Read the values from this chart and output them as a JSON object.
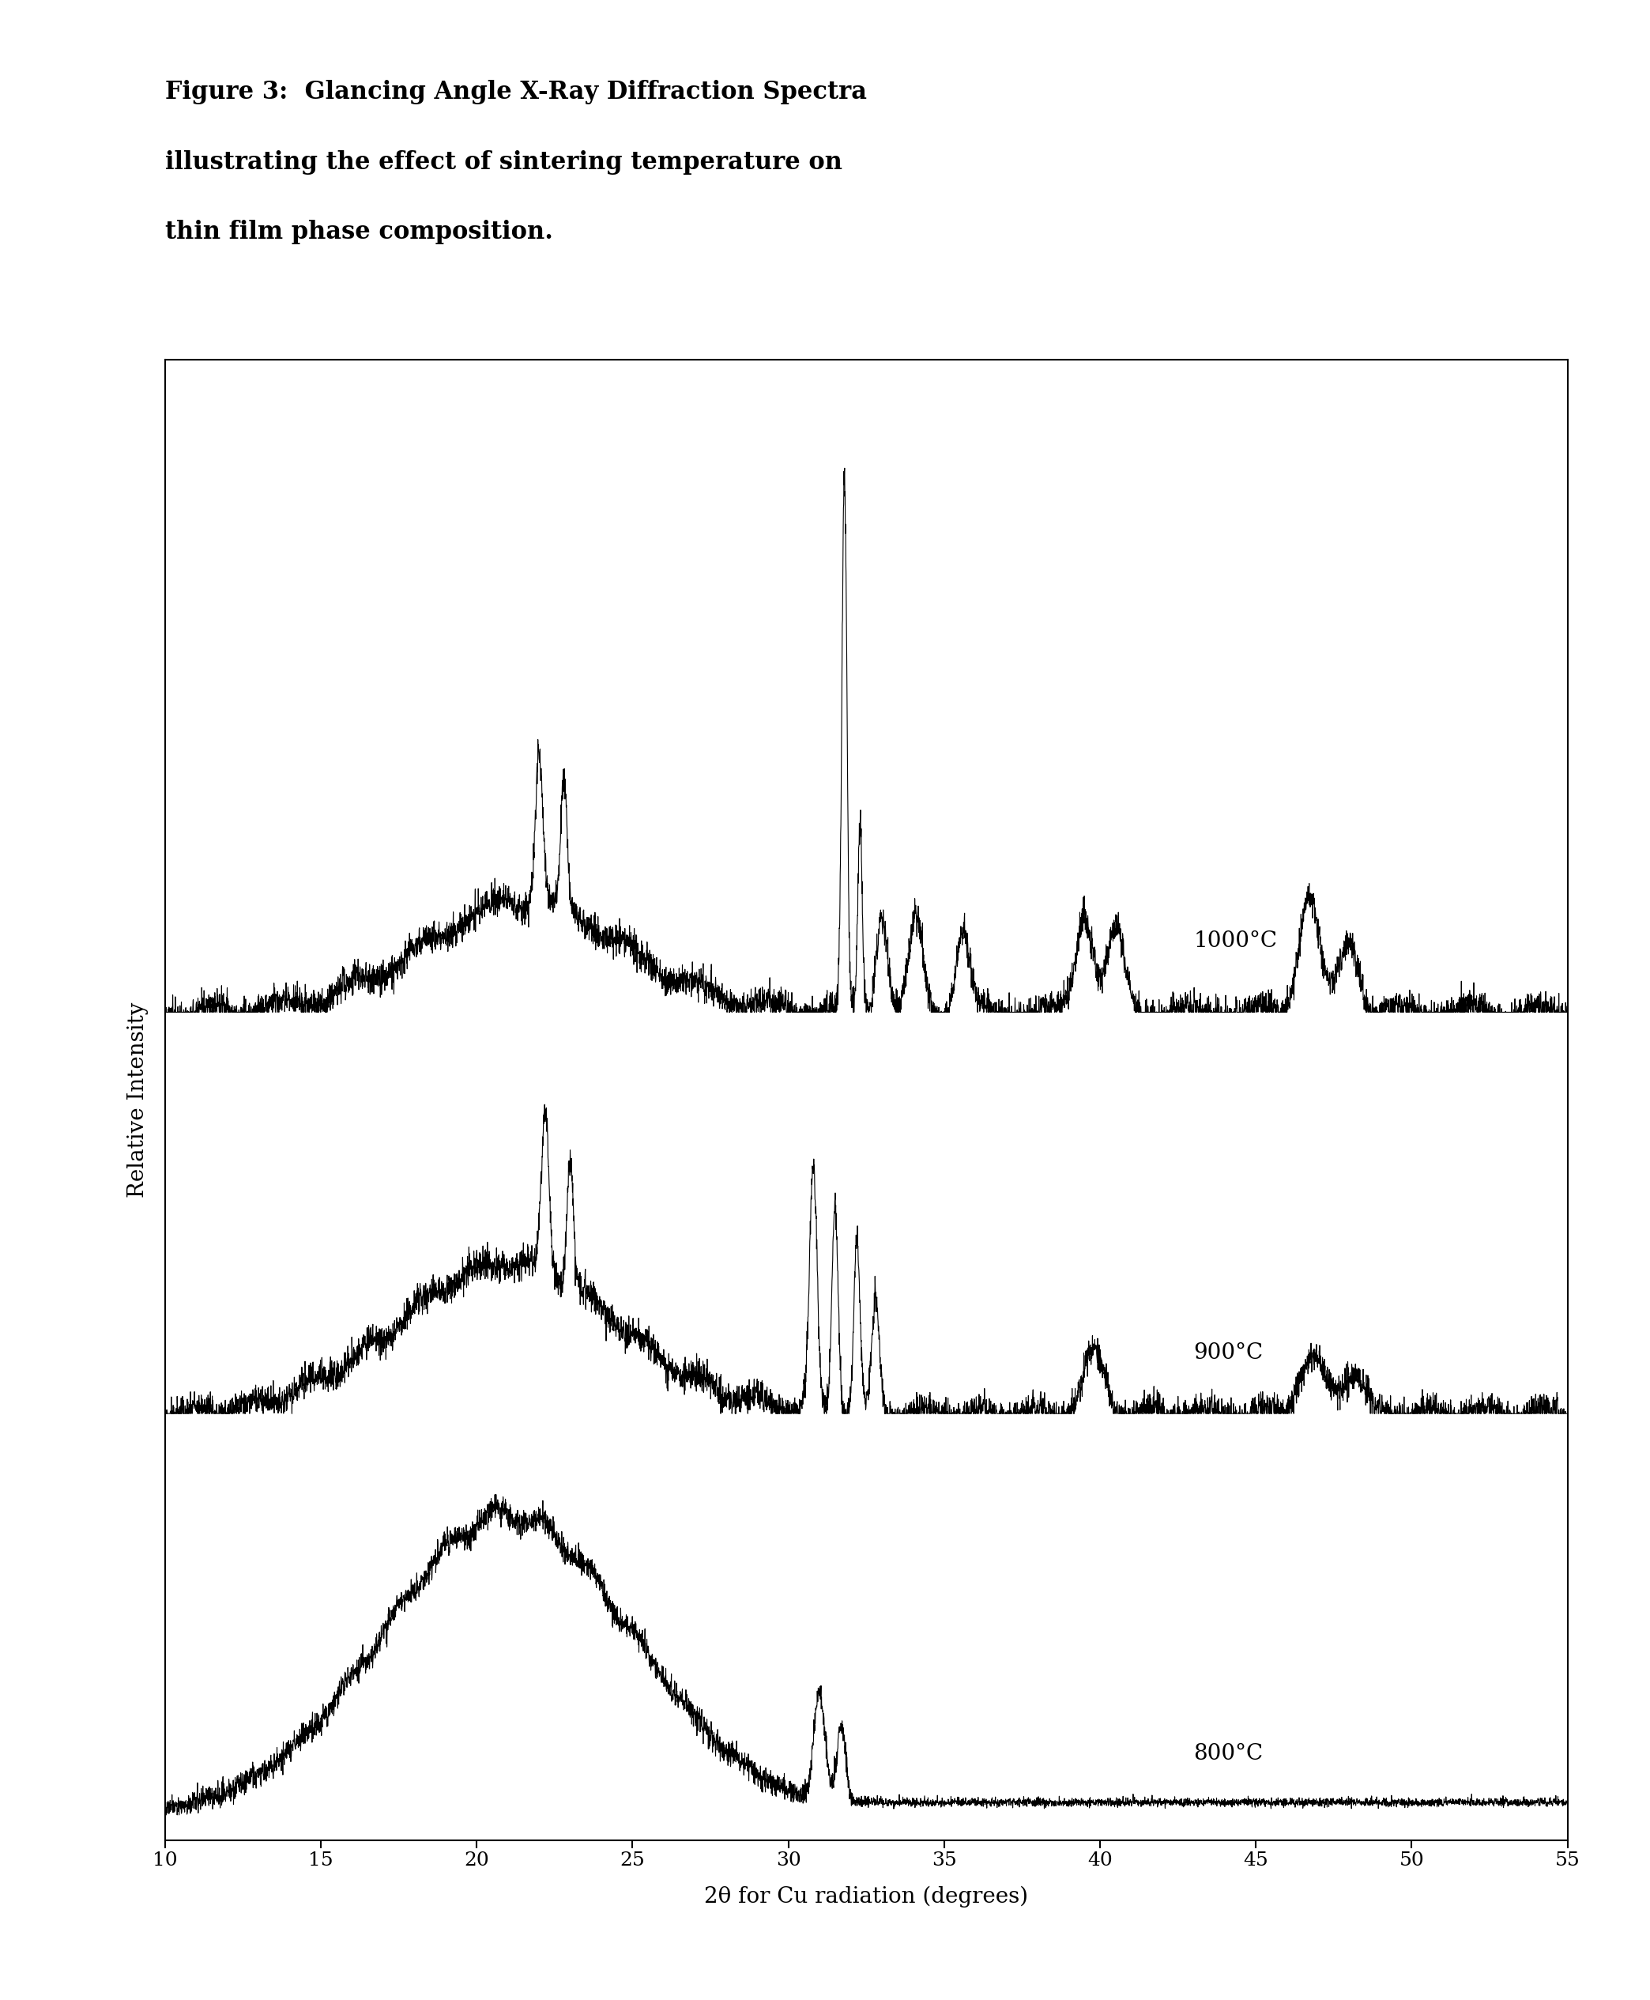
{
  "title_line1": "Figure 3:  Glancing Angle X-Ray Diffraction Spectra",
  "title_line2": "illustrating the effect of sintering temperature on",
  "title_line3": "thin film phase composition.",
  "xlabel": "2θ for Cu radiation (degrees)",
  "ylabel": "Relative Intensity",
  "xlim": [
    10,
    55
  ],
  "xticks": [
    10,
    15,
    20,
    25,
    30,
    35,
    40,
    45,
    50,
    55
  ],
  "offsets": [
    1.6,
    0.8,
    0.0
  ],
  "background_color": "#ffffff",
  "line_color": "#000000",
  "title_fontsize": 22,
  "label_fontsize": 20,
  "tick_fontsize": 18,
  "ylabel_fontsize": 20,
  "temp_labels": [
    "1000°C",
    "900°C",
    "800°C"
  ],
  "temps": [
    1000,
    900,
    800
  ]
}
